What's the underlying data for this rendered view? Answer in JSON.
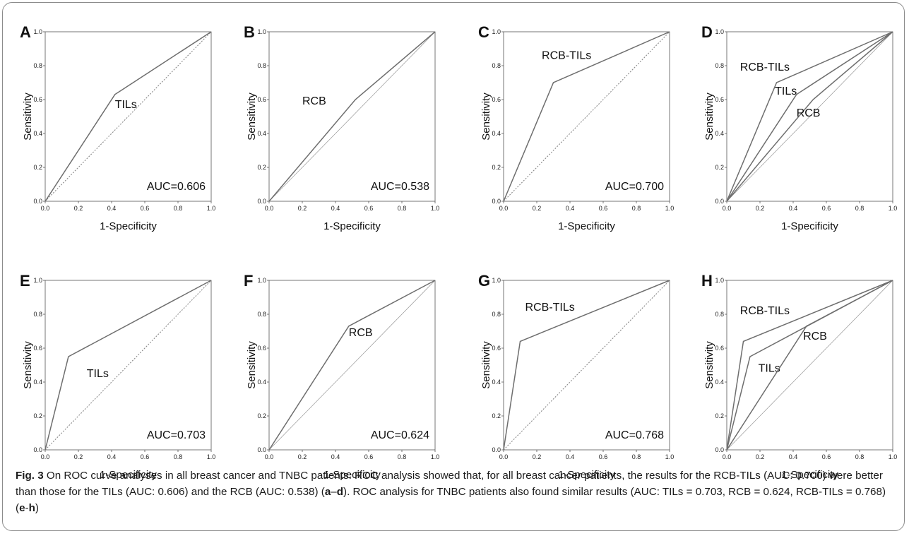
{
  "figure": {
    "caption_label": "Fig. 3",
    "caption_part1": " On ROC curve analyses in all breast cancer and TNBC patients. ROC analysis showed that, for all breast cancer patients, the results for the RCB-TILs (AUC: 0.700) were better than those for the TILs (AUC: 0.606) and the RCB (AUC: 0.538) (",
    "caption_ref1": "a",
    "caption_dash1": "–",
    "caption_ref2": "d",
    "caption_part2": "). ROC analysis for TNBC patients also found similar results (AUC: TILs = 0.703, RCB = 0.624, RCB-TILs = 0.768) (",
    "caption_ref3": "e",
    "caption_dash2": "-",
    "caption_ref4": "h",
    "caption_part3": ")"
  },
  "colors": {
    "curve": "#6e6e6e",
    "reference": "#8a8a8a",
    "axis": "#555555",
    "frame": "#8c8c8c"
  },
  "chart_data": [
    {
      "panel": "A",
      "type": "line",
      "xlabel": "1-Specificity",
      "ylabel": "Sensitivity",
      "xlim": [
        0,
        1
      ],
      "ylim": [
        0,
        1
      ],
      "ticks": [
        "0.0",
        "0.2",
        "0.4",
        "0.6",
        "0.8",
        "1.0"
      ],
      "reference_style": "dotted",
      "auc_label": "AUC=0.606",
      "series": [
        {
          "name": "TILs",
          "x": [
            0,
            0.42,
            1
          ],
          "y": [
            0,
            0.63,
            1
          ],
          "label_at": [
            0.42,
            0.55
          ]
        }
      ]
    },
    {
      "panel": "B",
      "type": "line",
      "xlabel": "1-Specificity",
      "ylabel": "Sensitivity",
      "xlim": [
        0,
        1
      ],
      "ylim": [
        0,
        1
      ],
      "ticks": [
        "0.0",
        "0.2",
        "0.4",
        "0.6",
        "0.8",
        "1.0"
      ],
      "reference_style": "solid-thin",
      "auc_label": "AUC=0.538",
      "series": [
        {
          "name": "RCB",
          "x": [
            0,
            0.52,
            1
          ],
          "y": [
            0,
            0.6,
            1
          ],
          "label_at": [
            0.2,
            0.57
          ]
        }
      ]
    },
    {
      "panel": "C",
      "type": "line",
      "xlabel": "1-Specificity",
      "ylabel": "Sensitivity",
      "xlim": [
        0,
        1
      ],
      "ylim": [
        0,
        1
      ],
      "ticks": [
        "0.0",
        "0.2",
        "0.4",
        "0.6",
        "0.8",
        "1.0"
      ],
      "reference_style": "dotted",
      "auc_label": "AUC=0.700",
      "series": [
        {
          "name": "RCB-TILs",
          "x": [
            0,
            0.3,
            1
          ],
          "y": [
            0,
            0.7,
            1
          ],
          "label_at": [
            0.23,
            0.84
          ]
        }
      ]
    },
    {
      "panel": "D",
      "type": "line",
      "xlabel": "1-Specificity",
      "ylabel": "Sensitivity",
      "xlim": [
        0,
        1
      ],
      "ylim": [
        0,
        1
      ],
      "ticks": [
        "0.0",
        "0.2",
        "0.4",
        "0.6",
        "0.8",
        "1.0"
      ],
      "reference_style": "solid-thin",
      "auc_label": "",
      "series": [
        {
          "name": "RCB-TILs",
          "x": [
            0,
            0.3,
            1
          ],
          "y": [
            0,
            0.7,
            1
          ],
          "label_at": [
            0.08,
            0.77
          ]
        },
        {
          "name": "TILs",
          "x": [
            0,
            0.42,
            1
          ],
          "y": [
            0,
            0.63,
            1
          ],
          "label_at": [
            0.29,
            0.63
          ]
        },
        {
          "name": "RCB",
          "x": [
            0,
            0.52,
            1
          ],
          "y": [
            0,
            0.6,
            1
          ],
          "label_at": [
            0.42,
            0.5
          ]
        }
      ]
    },
    {
      "panel": "E",
      "type": "line",
      "xlabel": "1-Specificity",
      "ylabel": "Sensitivity",
      "xlim": [
        0,
        1
      ],
      "ylim": [
        0,
        1
      ],
      "ticks": [
        "0.0",
        "0.2",
        "0.4",
        "0.6",
        "0.8",
        "1.0"
      ],
      "reference_style": "dotted",
      "auc_label": "AUC=0.703",
      "series": [
        {
          "name": "TILs",
          "x": [
            0,
            0.14,
            1
          ],
          "y": [
            0,
            0.55,
            1
          ],
          "label_at": [
            0.25,
            0.43
          ]
        }
      ]
    },
    {
      "panel": "F",
      "type": "line",
      "xlabel": "1-Specificity",
      "ylabel": "Sensitivity",
      "xlim": [
        0,
        1
      ],
      "ylim": [
        0,
        1
      ],
      "ticks": [
        "0.0",
        "0.2",
        "0.4",
        "0.6",
        "0.8",
        "1.0"
      ],
      "reference_style": "solid-thin",
      "auc_label": "AUC=0.624",
      "series": [
        {
          "name": "RCB",
          "x": [
            0,
            0.48,
            1
          ],
          "y": [
            0,
            0.73,
            1
          ],
          "label_at": [
            0.48,
            0.67
          ]
        }
      ]
    },
    {
      "panel": "G",
      "type": "line",
      "xlabel": "1-Specificity",
      "ylabel": "Sensitivity",
      "xlim": [
        0,
        1
      ],
      "ylim": [
        0,
        1
      ],
      "ticks": [
        "0.0",
        "0.2",
        "0.4",
        "0.6",
        "0.8",
        "1.0"
      ],
      "reference_style": "dotted",
      "auc_label": "AUC=0.768",
      "series": [
        {
          "name": "RCB-TILs",
          "x": [
            0,
            0.1,
            1
          ],
          "y": [
            0,
            0.64,
            1
          ],
          "label_at": [
            0.13,
            0.82
          ]
        }
      ]
    },
    {
      "panel": "H",
      "type": "line",
      "xlabel": "1-Specificity",
      "ylabel": "Sensitivity",
      "xlim": [
        0,
        1
      ],
      "ylim": [
        0,
        1
      ],
      "ticks": [
        "0.0",
        "0.2",
        "0.4",
        "0.6",
        "0.8",
        "1.0"
      ],
      "reference_style": "solid-thin",
      "auc_label": "",
      "series": [
        {
          "name": "RCB-TILs",
          "x": [
            0,
            0.1,
            1
          ],
          "y": [
            0,
            0.64,
            1
          ],
          "label_at": [
            0.08,
            0.8
          ]
        },
        {
          "name": "TILs",
          "x": [
            0,
            0.14,
            1
          ],
          "y": [
            0,
            0.55,
            1
          ],
          "label_at": [
            0.19,
            0.46
          ]
        },
        {
          "name": "RCB",
          "x": [
            0,
            0.48,
            1
          ],
          "y": [
            0,
            0.73,
            1
          ],
          "label_at": [
            0.46,
            0.65
          ]
        }
      ]
    }
  ]
}
